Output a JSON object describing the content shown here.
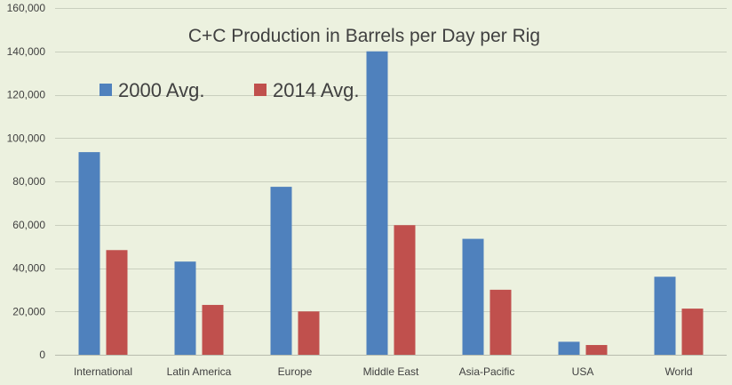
{
  "chart_data": {
    "type": "bar",
    "title": "C+C Production in Barrels per Day per Rig",
    "xlabel": "",
    "ylabel": "",
    "categories": [
      "International",
      "Latin America",
      "Europe",
      "Middle East",
      "Asia-Pacific",
      "USA",
      "World"
    ],
    "series": [
      {
        "name": "2000 Avg.",
        "color": "#4f81bd",
        "values": [
          93500,
          43000,
          77500,
          140000,
          53500,
          6000,
          36000
        ]
      },
      {
        "name": "2014 Avg.",
        "color": "#c0504d",
        "values": [
          48300,
          23000,
          20000,
          59800,
          30000,
          4500,
          21300
        ]
      }
    ],
    "ylim": [
      0,
      160000
    ],
    "yticks": [
      0,
      20000,
      40000,
      60000,
      80000,
      100000,
      120000,
      140000,
      160000
    ],
    "ytick_labels": [
      "0",
      "20,000",
      "40,000",
      "60,000",
      "80,000",
      "100,000",
      "120,000",
      "140,000",
      "160,000"
    ],
    "grid": true,
    "legend_position": "top-left"
  }
}
